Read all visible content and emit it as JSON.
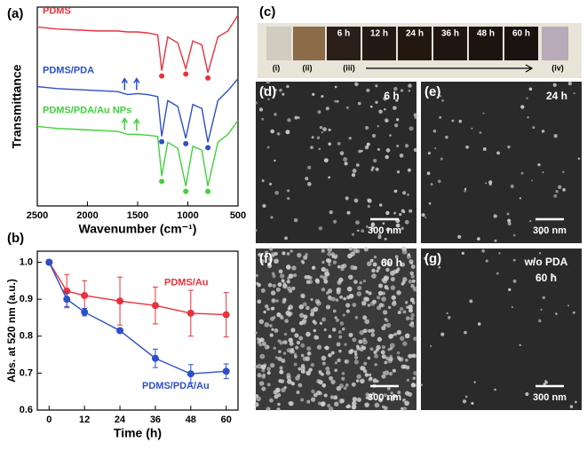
{
  "chart_data": [
    {
      "type": "line",
      "panel_label": "(a)",
      "x_label": "Wavenumber (cm⁻¹)",
      "y_label": "Transmittance",
      "x": [
        2500,
        2300,
        2100,
        1900,
        1700,
        1600,
        1500,
        1400,
        1300,
        1260,
        1200,
        1100,
        1020,
        950,
        860,
        800,
        700,
        600,
        500
      ],
      "xlim": [
        2500,
        500
      ],
      "xticks": [
        2500,
        2000,
        1500,
        1000,
        500
      ],
      "ylim": [
        0,
        10
      ],
      "series": [
        {
          "name": "PDMS",
          "color": "#e8323c",
          "values": [
            9.0,
            8.9,
            8.85,
            8.8,
            8.8,
            8.75,
            8.75,
            8.7,
            8.6,
            6.8,
            8.5,
            8.2,
            6.9,
            8.3,
            8.1,
            6.7,
            8.5,
            8.8,
            9.6
          ]
        },
        {
          "name": "PDMS/PDA",
          "color": "#2d4fc9",
          "values": [
            6.0,
            5.9,
            5.85,
            5.8,
            5.75,
            5.6,
            5.65,
            5.6,
            5.5,
            3.5,
            5.3,
            5.0,
            3.4,
            5.1,
            4.9,
            3.2,
            5.3,
            5.8,
            6.4
          ]
        },
        {
          "name": "PDMS/PDA/Au NPs",
          "color": "#3fd23a",
          "values": [
            4.0,
            3.9,
            3.85,
            3.8,
            3.75,
            3.6,
            3.6,
            3.55,
            3.5,
            1.5,
            3.2,
            2.9,
            1.0,
            3.0,
            2.8,
            1.0,
            3.2,
            3.6,
            4.3
          ]
        }
      ],
      "peaks": [
        1260,
        1020,
        800
      ],
      "arrows": [
        1630,
        1510
      ]
    },
    {
      "type": "line",
      "panel_label": "(b)",
      "x_label": "Time (h)",
      "y_label": "Abs. at 520 nm (a.u.)",
      "x": [
        0,
        6,
        12,
        24,
        36,
        48,
        60
      ],
      "xlim": [
        -4,
        64
      ],
      "xticks": [
        0,
        12,
        24,
        36,
        48,
        60
      ],
      "ylim": [
        0.6,
        1.03
      ],
      "yticks": [
        0.6,
        0.7,
        0.8,
        0.9,
        {
          "value": 1,
          "label": "1.0"
        }
      ],
      "series": [
        {
          "name": "PDMS/Au",
          "color": "#e8323c",
          "values": [
            1.0,
            0.922,
            0.91,
            0.895,
            0.883,
            0.862,
            0.858
          ],
          "errors": [
            0,
            0.045,
            0.04,
            0.065,
            0.05,
            0.062,
            0.06
          ]
        },
        {
          "name": "PDMS/PDA/Au",
          "color": "#2d4fc9",
          "values": [
            1.0,
            0.9,
            0.865,
            0.815,
            0.74,
            0.698,
            0.705
          ],
          "errors": [
            0,
            0.02,
            0.01,
            0.005,
            0.025,
            0.025,
            0.02
          ]
        }
      ]
    }
  ],
  "panels": {
    "c": {
      "label": "(c)",
      "times": [
        "6 h",
        "12 h",
        "24 h",
        "36 h",
        "48 h",
        "60 h"
      ],
      "samples": [
        "(i)",
        "(ii)",
        "(iii)",
        "(iv)"
      ]
    },
    "d": {
      "label": "(d)",
      "time": "6 h",
      "scale": "300 nm"
    },
    "e": {
      "label": "(e)",
      "time": "24 h",
      "scale": "300 nm"
    },
    "f": {
      "label": "(f)",
      "time": "60 h",
      "scale": "300 nm"
    },
    "g": {
      "label": "(g)",
      "note": "w/o PDA",
      "time": "60 h",
      "scale": "300 nm"
    }
  }
}
